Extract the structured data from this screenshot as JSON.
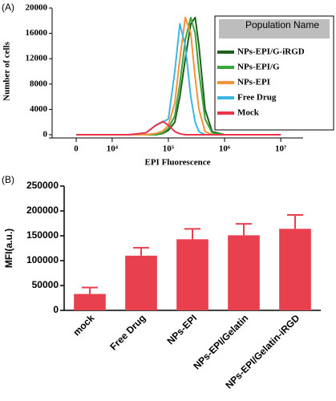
{
  "chart_data": [
    {
      "type": "line",
      "panel_label": "(A)",
      "xlabel": "EPI Fluorescence",
      "ylabel": "Number of cells",
      "xscale": "biexponential",
      "xlim": [
        -6700,
        25000000
      ],
      "xticks": [
        0,
        {
          "value": 10000,
          "label": "10⁴"
        },
        {
          "value": 100000,
          "label": "10⁵"
        },
        {
          "value": 1000000,
          "label": "10⁶"
        },
        {
          "value": 10000000,
          "label": "10⁷"
        }
      ],
      "ylim": [
        0,
        20000
      ],
      "yticks": [
        0,
        4000,
        8000,
        12000,
        16000,
        20000
      ],
      "legend": "top-right",
      "legend_title": "Population Name",
      "x": [
        0,
        20000,
        40000,
        60000,
        80000,
        100000,
        130000,
        160000,
        200000,
        250000,
        300000,
        350000,
        450000,
        600000,
        1000000,
        10000000
      ],
      "series": [
        {
          "name": "NPs-EPI/G-iRGD",
          "color": "#1f5f1f",
          "values": [
            0,
            0,
            0,
            0,
            200,
            700,
            2000,
            6000,
            12000,
            17500,
            18500,
            14000,
            4000,
            500,
            0,
            0
          ]
        },
        {
          "name": "NPs-EPI/G",
          "color": "#3aa63a",
          "values": [
            0,
            0,
            0,
            0,
            300,
            1000,
            3000,
            8000,
            15000,
            18500,
            16000,
            10000,
            2500,
            300,
            0,
            0
          ]
        },
        {
          "name": "NPs-EPI",
          "color": "#f5923a",
          "values": [
            0,
            0,
            0,
            200,
            600,
            1500,
            5000,
            12000,
            18500,
            16000,
            9000,
            4000,
            500,
            0,
            0,
            0
          ]
        },
        {
          "name": "Free Drug",
          "color": "#3fb6e0",
          "values": [
            0,
            0,
            300,
            1500,
            2000,
            2500,
            10000,
            17500,
            14000,
            6000,
            2000,
            500,
            0,
            0,
            0,
            0
          ]
        },
        {
          "name": "Mock",
          "color": "#e8354a",
          "values": [
            0,
            0,
            300,
            1500,
            2100,
            1500,
            500,
            150,
            0,
            0,
            0,
            0,
            0,
            0,
            0,
            0
          ]
        }
      ]
    },
    {
      "type": "bar",
      "panel_label": "(B)",
      "ylabel": "MFI(a.u.)",
      "color": "#e8404f",
      "categories": [
        "mock",
        "Free Drug",
        "NPs-EPI",
        "NPs-EPI/Gelatin",
        "NPs-EPI/Gelatin-iRGD"
      ],
      "values": [
        33000,
        110000,
        143000,
        151000,
        164000
      ],
      "errors": [
        13000,
        16000,
        21000,
        23000,
        28000
      ],
      "ylim": [
        0,
        250000
      ],
      "yticks": [
        0,
        50000,
        100000,
        150000,
        200000,
        250000
      ]
    }
  ]
}
